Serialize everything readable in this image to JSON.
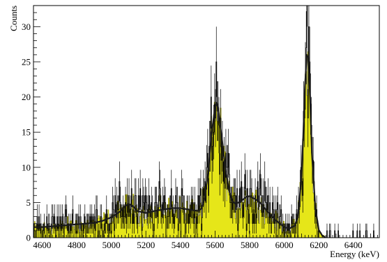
{
  "chart_data": {
    "type": "histogram",
    "title": "",
    "xlabel": "Energy (keV)",
    "ylabel": "Counts",
    "xlim": [
      4550,
      6550
    ],
    "ylim": [
      0,
      33
    ],
    "x_ticks": [
      4600,
      4800,
      5000,
      5200,
      5400,
      5600,
      5800,
      6000,
      6200,
      6400
    ],
    "y_ticks": [
      0,
      5,
      10,
      15,
      20,
      25,
      30
    ],
    "grid": false,
    "legend": "none",
    "bin_width": 5,
    "colors": {
      "fill": "#e6e619",
      "fill_edge": "#9a9a10",
      "data": "#000000",
      "fit": "#1a1a1a"
    },
    "series": [
      {
        "kind": "filled-histogram",
        "x": [
          4560,
          4600,
          4650,
          4700,
          4750,
          4800,
          4850,
          4900,
          4950,
          5000,
          5050,
          5080,
          5100,
          5120,
          5150,
          5200,
          5250,
          5300,
          5350,
          5400,
          5450,
          5500,
          5520,
          5540,
          5560,
          5580,
          5600,
          5610,
          5620,
          5640,
          5660,
          5680,
          5700,
          5720,
          5750,
          5780,
          5800,
          5830,
          5860,
          5900,
          5950,
          6000,
          6030,
          6060,
          6080,
          6100,
          6110,
          6120,
          6130,
          6140,
          6150,
          6160,
          6180,
          6200,
          6220,
          6240
        ],
        "y": [
          1.4,
          1.4,
          1.5,
          1.6,
          1.7,
          1.8,
          1.9,
          2.0,
          2.3,
          2.8,
          3.6,
          4.4,
          4.7,
          4.5,
          3.6,
          3.3,
          3.6,
          3.9,
          4.1,
          4.1,
          3.9,
          3.7,
          4.0,
          5.5,
          9.0,
          14.5,
          18.0,
          18.6,
          17.5,
          13.5,
          9.5,
          6.5,
          5.0,
          4.6,
          5.0,
          5.6,
          5.7,
          5.3,
          4.8,
          3.6,
          2.3,
          1.4,
          1.2,
          1.6,
          2.8,
          8.5,
          14.0,
          21.0,
          25.5,
          25.0,
          19.0,
          11.5,
          4.0,
          1.0,
          0.3,
          0.0
        ]
      },
      {
        "kind": "fit-curve",
        "x": [
          4560,
          4600,
          4650,
          4700,
          4750,
          4800,
          4850,
          4900,
          4950,
          5000,
          5050,
          5080,
          5100,
          5120,
          5150,
          5200,
          5250,
          5300,
          5350,
          5400,
          5450,
          5500,
          5520,
          5540,
          5560,
          5580,
          5600,
          5610,
          5620,
          5640,
          5660,
          5680,
          5700,
          5720,
          5750,
          5780,
          5800,
          5830,
          5860,
          5900,
          5950,
          6000,
          6030,
          6060,
          6080,
          6100,
          6110,
          6120,
          6130,
          6140,
          6150,
          6160,
          6180,
          6200,
          6220,
          6240
        ],
        "y": [
          1.5,
          1.5,
          1.6,
          1.7,
          1.8,
          1.9,
          2.0,
          2.1,
          2.4,
          2.9,
          3.7,
          4.5,
          4.8,
          4.6,
          3.8,
          3.5,
          3.8,
          4.0,
          4.2,
          4.2,
          4.0,
          3.8,
          4.1,
          5.7,
          9.2,
          14.8,
          18.5,
          19.2,
          18.0,
          14.0,
          9.8,
          6.8,
          5.2,
          4.8,
          5.2,
          5.8,
          5.9,
          5.5,
          5.0,
          3.8,
          2.5,
          1.5,
          1.3,
          1.7,
          3.0,
          8.8,
          14.5,
          21.5,
          26.0,
          25.6,
          19.5,
          12.0,
          4.2,
          1.1,
          0.3,
          0.0
        ]
      },
      {
        "kind": "data-points",
        "error_bars": true
      }
    ]
  }
}
